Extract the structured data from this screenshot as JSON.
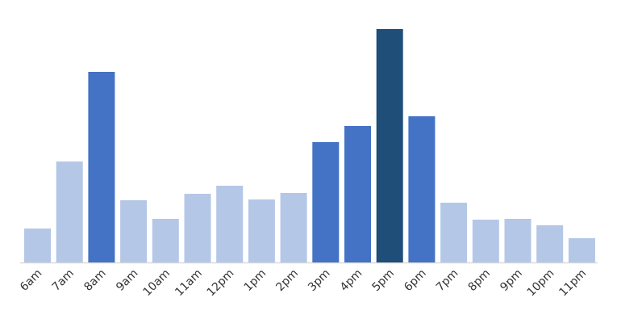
{
  "chart_data": {
    "type": "bar",
    "categories": [
      "6am",
      "7am",
      "8am",
      "9am",
      "10am",
      "11am",
      "12pm",
      "1pm",
      "2pm",
      "3pm",
      "4pm",
      "5pm",
      "6pm",
      "7pm",
      "8pm",
      "9pm",
      "10pm",
      "11pm"
    ],
    "values": [
      42,
      125,
      236,
      77,
      54,
      85,
      95,
      78,
      86,
      149,
      169,
      289,
      181,
      74,
      53,
      54,
      46,
      30
    ],
    "colors": [
      "#b4c7e7",
      "#b4c7e7",
      "#4472c4",
      "#b4c7e7",
      "#b4c7e7",
      "#b4c7e7",
      "#b4c7e7",
      "#b4c7e7",
      "#b4c7e7",
      "#4472c4",
      "#4472c4",
      "#1f4e79",
      "#4472c4",
      "#b4c7e7",
      "#b4c7e7",
      "#b4c7e7",
      "#b4c7e7",
      "#b4c7e7"
    ]
  }
}
